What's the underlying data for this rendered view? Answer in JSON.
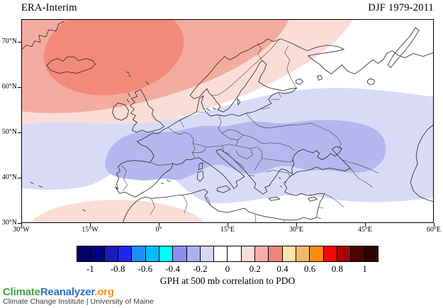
{
  "header": {
    "dataset": "ERA-Interim",
    "period": "DJF 1979-2011"
  },
  "map": {
    "lat_ticks": [
      "70°N",
      "60°N",
      "50°N",
      "40°N",
      "30°N"
    ],
    "lon_ticks": [
      "30°W",
      "15°W",
      "0°",
      "15°E",
      "30°E",
      "45°E",
      "60°E"
    ],
    "shading": {
      "neg_01_02": "#D9DBF6",
      "neg_02_03": "#B4B8EF",
      "pos_01_02": "#FBDDD8",
      "pos_02_03": "#F5ACA0",
      "pos_03_04": "#F18A7A",
      "background": "#FFFFFF",
      "coastline": "#222222",
      "border": "#333333"
    }
  },
  "colorbar": {
    "tick_labels": [
      "-1",
      "-0.8",
      "-0.6",
      "-0.4",
      "-0.2",
      "0",
      "0.2",
      "0.4",
      "0.6",
      "0.8",
      "1"
    ],
    "cell_colors": [
      "#00006B",
      "#000087",
      "#1C1CB8",
      "#2323F3",
      "#1E8FFF",
      "#00BFFF",
      "#00FFFF",
      "#8C8CF0",
      "#AEAEF4",
      "#D6D6F9",
      "#FFFFFF",
      "#FFFFFF",
      "#FBDCDC",
      "#F5AFAA",
      "#F0837B",
      "#FAE3A8",
      "#F5B86B",
      "#FA8C14",
      "#F50505",
      "#A40606",
      "#4A0404",
      "#300101"
    ],
    "caption": "GPH at 500 mb correlation to PDO"
  },
  "footer": {
    "brand_climate": "Climate",
    "brand_reanalyzer": "Reanalyzer",
    "brand_org": ".org",
    "brand_colors": {
      "climate": "#3FA14A",
      "reanalyzer": "#2D74BC",
      "org": "#F6921E"
    },
    "institute": "Climate Change Institute | University of Maine"
  },
  "chart_data": {
    "type": "heatmap",
    "title": "GPH at 500 mb correlation to PDO",
    "dataset": "ERA-Interim",
    "season_period": "DJF 1979-2011",
    "projection_extent": {
      "lon_range": [
        "30°W",
        "60°E"
      ],
      "lat_range": [
        "30°N",
        "75°N"
      ]
    },
    "x_ticks": [
      "30°W",
      "15°W",
      "0°",
      "15°E",
      "30°E",
      "45°E",
      "60°E"
    ],
    "y_ticks": [
      "30°N",
      "40°N",
      "50°N",
      "60°N",
      "70°N"
    ],
    "colorbar": {
      "min": -1.1,
      "max": 1.1,
      "interval": 0.1,
      "tick_labels": [
        -1,
        -0.8,
        -0.6,
        -0.4,
        -0.2,
        0,
        0.2,
        0.4,
        0.6,
        0.8,
        1
      ],
      "position": "bottom"
    },
    "grid": false,
    "features": [
      {
        "region": "North Atlantic around Iceland and Norwegian Sea",
        "correlation": "+0.2 to +0.4 (salmon core ~0.3-0.4 near Iceland)"
      },
      {
        "region": "Band from France across Central Europe and Balkans to Ukraine / north of Black Sea",
        "correlation": "-0.2 to -0.3"
      },
      {
        "region": "Broad mid-latitude band over Europe, Mediterranean, Turkey",
        "correlation": "-0.1 to -0.2"
      },
      {
        "region": "Northwest Africa near 30°N between 25°W and 0°",
        "correlation": "+0.1 to +0.2"
      },
      {
        "region": "Interior Scandinavia, NW Russia, Iberia interior, Middle East, North Africa east",
        "correlation": "-0.1 to +0.1 (white, near zero)"
      }
    ]
  }
}
